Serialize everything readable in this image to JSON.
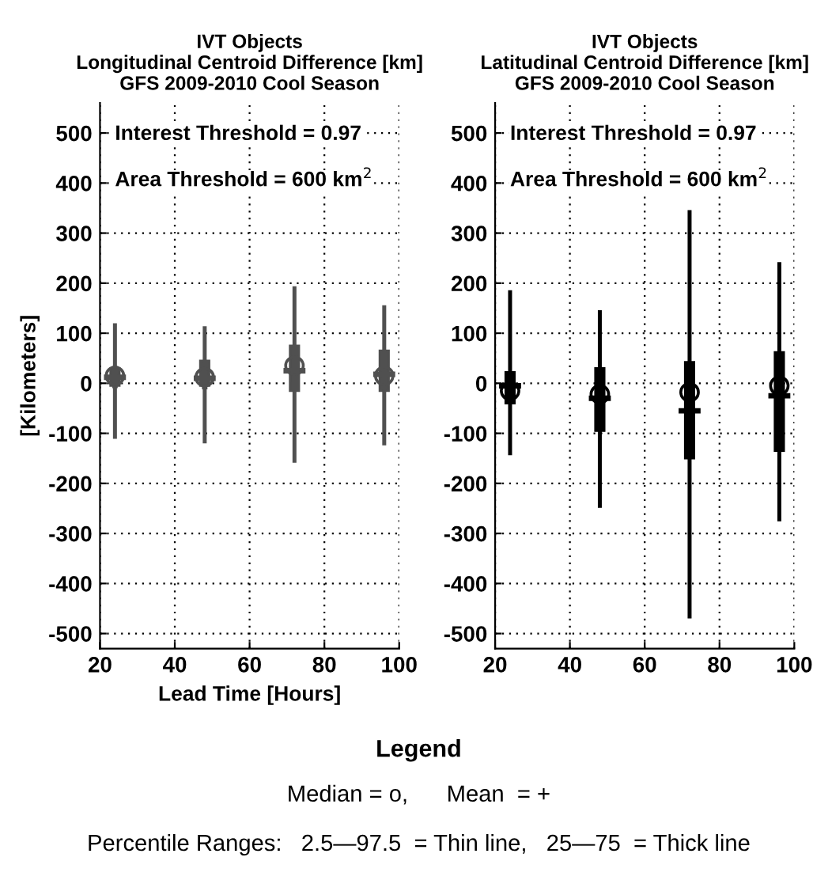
{
  "chart_data": [
    {
      "type": "box",
      "title": "IVT Objects\nLongitudinal Centroid Difference [km]\nGFS 2009-2010 Cool Season",
      "xlabel": "Lead Time [Hours]",
      "ylabel": "[Kilometers]",
      "annotations": [
        "Interest Threshold = 0.97",
        "Area Threshold = 600 km$^{2}$"
      ],
      "x": [
        24,
        48,
        72,
        96
      ],
      "color": "#505050",
      "boxes": [
        {
          "low": -107,
          "q1": -5,
          "median": 15,
          "q3": 30,
          "high": 116,
          "mean": 12
        },
        {
          "low": -116,
          "q1": -5,
          "median": 12,
          "q3": 45,
          "high": 110,
          "mean": 10
        },
        {
          "low": -155,
          "q1": -15,
          "median": 35,
          "q3": 75,
          "high": 190,
          "mean": 25
        },
        {
          "low": -120,
          "q1": -15,
          "median": 15,
          "q3": 65,
          "high": 152,
          "mean": 18
        }
      ],
      "xlim": [
        20,
        100
      ],
      "xticks": [
        20,
        40,
        60,
        80,
        100
      ],
      "ylim": [
        -530,
        560
      ],
      "yticks": [
        -500,
        -400,
        -300,
        -200,
        -100,
        0,
        100,
        200,
        300,
        400,
        500
      ],
      "grid": true
    },
    {
      "type": "box",
      "title": "IVT Objects\nLatitudinal Centroid Difference [km]\nGFS 2009-2010 Cool Season",
      "annotations": [
        "Interest Threshold = 0.97",
        "Area Threshold = 600 km$^{2}$"
      ],
      "x": [
        24,
        48,
        72,
        96
      ],
      "color": "#000000",
      "boxes": [
        {
          "low": -140,
          "q1": -40,
          "median": -15,
          "q3": 22,
          "high": 182,
          "mean": -5
        },
        {
          "low": -245,
          "q1": -95,
          "median": -22,
          "q3": 30,
          "high": 142,
          "mean": -30
        },
        {
          "low": -466,
          "q1": -150,
          "median": -18,
          "q3": 42,
          "high": 342,
          "mean": -55
        },
        {
          "low": -272,
          "q1": -135,
          "median": -5,
          "q3": 62,
          "high": 238,
          "mean": -25
        }
      ],
      "xlim": [
        20,
        100
      ],
      "xticks": [
        20,
        40,
        60,
        80,
        100
      ],
      "ylim": [
        -530,
        560
      ],
      "yticks": [
        -500,
        -400,
        -300,
        -200,
        -100,
        0,
        100,
        200,
        300,
        400,
        500
      ],
      "grid": true
    },
    {
      "type": "other",
      "title": "Legend",
      "annotations": [
        "Median = o,      Mean  = +",
        "Percentile Ranges:   2.5—97.5  = Thin line,   25—75  = Thick line"
      ]
    }
  ]
}
